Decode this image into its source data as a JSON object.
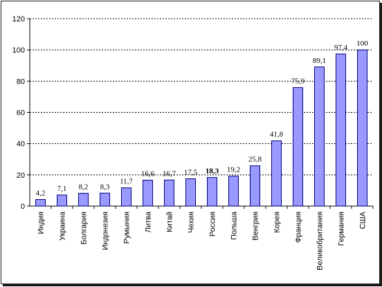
{
  "chart_data": {
    "type": "bar",
    "title": "",
    "xlabel": "",
    "ylabel": "",
    "ylim": [
      0,
      120
    ],
    "yticks": [
      "0",
      "20",
      "40",
      "60",
      "80",
      "100",
      "120"
    ],
    "grid": "horizontal-dotted",
    "bar_color": "#9999ff",
    "bar_edge_color": "#000080",
    "categories": [
      "Индия",
      "Украина",
      "Болгария",
      "Индонезия",
      "Румыния",
      "Литва",
      "Китай",
      "Чехия",
      "Россия",
      "Польша",
      "Венгрия",
      "Корея",
      "Франция",
      "Великобритания",
      "Германия",
      "США"
    ],
    "category_labels": [
      "Индия",
      "Украина",
      "Болгария",
      "Индонезия",
      "Румыния",
      "Литва",
      "Китай",
      "Чехия",
      "Россия",
      "Польша",
      "Венгрия",
      "Корея",
      "Франция",
      "Вeликобритания",
      "Германия",
      "США"
    ],
    "values": [
      4.2,
      7.1,
      8.2,
      8.3,
      11.7,
      16.6,
      16.7,
      17.5,
      18.3,
      19.2,
      25.8,
      41.8,
      75.9,
      89.1,
      97.4,
      100
    ],
    "value_labels": [
      "4,2",
      "7,1",
      "8,2",
      "8,3",
      "11,7",
      "16,6",
      "16,7",
      "17,5",
      "18,3",
      "19,2",
      "25,8",
      "41,8",
      "75,9",
      "89,1",
      "97,4",
      "100"
    ],
    "highlighted_label": "18,3"
  }
}
